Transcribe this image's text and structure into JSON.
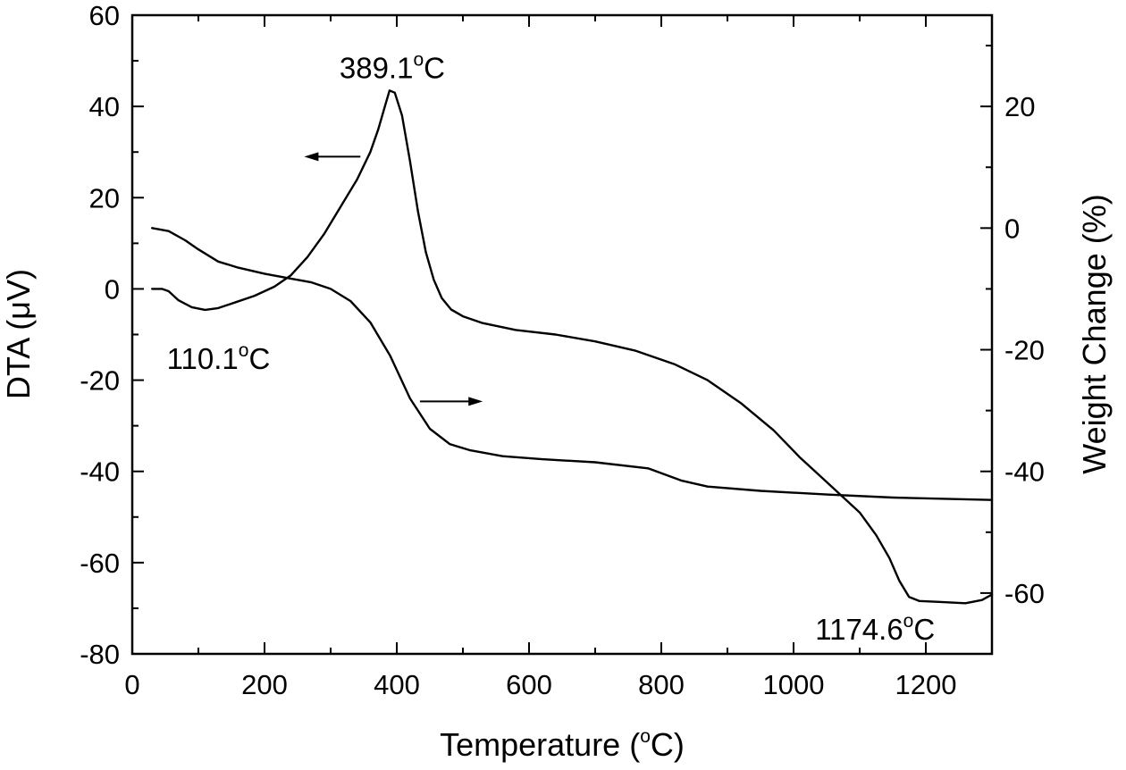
{
  "chart_data": {
    "type": "line",
    "xlabel": {
      "main": "Temperature (",
      "sup": "o",
      "tail": "C)"
    },
    "ylabel_left": "DTA (μV)",
    "ylabel_right": "Weight Change (%)",
    "xlim": [
      0,
      1300
    ],
    "ylim_left": [
      -80,
      60
    ],
    "ylim_right": [
      -70,
      35
    ],
    "x_ticks": [
      0,
      200,
      400,
      600,
      800,
      1000,
      1200
    ],
    "x_tick_labels": [
      "0",
      "200",
      "400",
      "600",
      "800",
      "1000",
      "1200"
    ],
    "y_left_ticks": [
      -80,
      -60,
      -40,
      -20,
      0,
      20,
      40,
      60
    ],
    "y_left_tick_labels": [
      "-80",
      "-60",
      "-40",
      "-20",
      "0",
      "20",
      "40",
      "60"
    ],
    "y_right_ticks": [
      -60,
      -40,
      -20,
      0,
      20
    ],
    "y_right_tick_labels": [
      "-60",
      "-40",
      "-20",
      "0",
      "20"
    ],
    "grid": false,
    "series": [
      {
        "name": "DTA",
        "axis": "left",
        "points": [
          [
            30,
            0
          ],
          [
            45,
            0
          ],
          [
            55,
            -0.5
          ],
          [
            70,
            -2.5
          ],
          [
            90,
            -4
          ],
          [
            110.1,
            -4.6
          ],
          [
            130,
            -4.2
          ],
          [
            155,
            -3
          ],
          [
            185,
            -1.5
          ],
          [
            215,
            0.5
          ],
          [
            240,
            3
          ],
          [
            265,
            7
          ],
          [
            290,
            12
          ],
          [
            315,
            18
          ],
          [
            340,
            24
          ],
          [
            360,
            30
          ],
          [
            372,
            35
          ],
          [
            382,
            40
          ],
          [
            389.1,
            43.5
          ],
          [
            397,
            43
          ],
          [
            408,
            38
          ],
          [
            420,
            28
          ],
          [
            432,
            17
          ],
          [
            444,
            8
          ],
          [
            456,
            2
          ],
          [
            468,
            -2
          ],
          [
            482,
            -4.5
          ],
          [
            500,
            -6
          ],
          [
            530,
            -7.5
          ],
          [
            580,
            -9
          ],
          [
            640,
            -10
          ],
          [
            700,
            -11.5
          ],
          [
            760,
            -13.5
          ],
          [
            820,
            -16.5
          ],
          [
            870,
            -20
          ],
          [
            920,
            -25
          ],
          [
            970,
            -31
          ],
          [
            1010,
            -37
          ],
          [
            1040,
            -41
          ],
          [
            1070,
            -45
          ],
          [
            1100,
            -49
          ],
          [
            1125,
            -54
          ],
          [
            1145,
            -59
          ],
          [
            1160,
            -64
          ],
          [
            1174.6,
            -67.5
          ],
          [
            1190,
            -68.4
          ],
          [
            1220,
            -68.6
          ],
          [
            1260,
            -68.9
          ],
          [
            1285,
            -68.2
          ],
          [
            1300,
            -67
          ]
        ]
      },
      {
        "name": "Weight Change",
        "axis": "right",
        "points": [
          [
            30,
            0
          ],
          [
            55,
            -0.5
          ],
          [
            80,
            -2
          ],
          [
            100,
            -3.5
          ],
          [
            130,
            -5.5
          ],
          [
            160,
            -6.5
          ],
          [
            200,
            -7.5
          ],
          [
            240,
            -8.3
          ],
          [
            270,
            -8.9
          ],
          [
            300,
            -10
          ],
          [
            330,
            -12
          ],
          [
            360,
            -15.5
          ],
          [
            390,
            -21
          ],
          [
            420,
            -28
          ],
          [
            450,
            -33
          ],
          [
            480,
            -35.5
          ],
          [
            510,
            -36.5
          ],
          [
            560,
            -37.5
          ],
          [
            620,
            -38
          ],
          [
            700,
            -38.5
          ],
          [
            780,
            -39.5
          ],
          [
            830,
            -41.5
          ],
          [
            870,
            -42.5
          ],
          [
            950,
            -43.2
          ],
          [
            1050,
            -43.8
          ],
          [
            1150,
            -44.3
          ],
          [
            1300,
            -44.7
          ]
        ]
      }
    ],
    "annotations": [
      {
        "main": "389.1",
        "sup": "o",
        "tail": "C",
        "x": 389.1,
        "y": 43.5,
        "axis": "left",
        "anchor": "above"
      },
      {
        "main": "110.1",
        "sup": "o",
        "tail": "C",
        "x": 110.1,
        "y": -4.6,
        "axis": "left",
        "anchor": "below"
      },
      {
        "main": "1174.6",
        "sup": "o",
        "tail": "C",
        "x": 1174.6,
        "y": -67.5,
        "axis": "left",
        "anchor": "below-left"
      }
    ],
    "arrows": [
      {
        "name": "DTA-axis",
        "direction": "left",
        "from_x": 345,
        "to_x": 260,
        "y": 29,
        "axis": "left"
      },
      {
        "name": "weight-axis",
        "direction": "right",
        "from_x": 435,
        "to_x": 530,
        "y": -28.5,
        "axis": "right"
      }
    ]
  }
}
